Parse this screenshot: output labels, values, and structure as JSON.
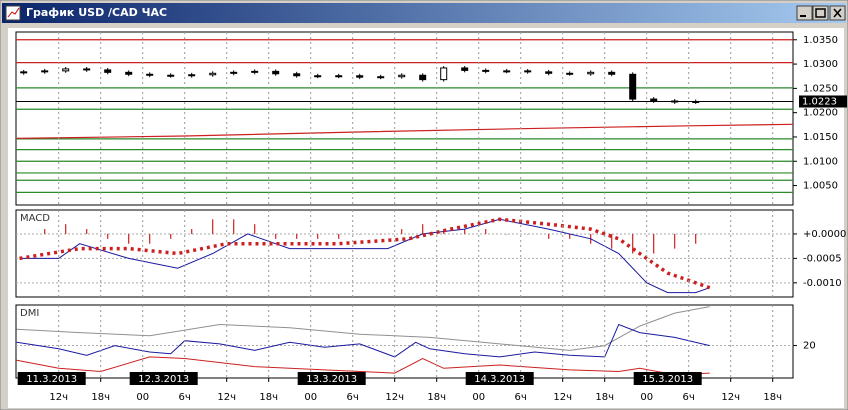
{
  "window_title": "График USD /CAD ЧАС",
  "chart_data": [
    {
      "type": "candlestick",
      "xlim": [
        5.9,
        116.9
      ],
      "ylim": [
        1.001,
        1.0366
      ],
      "yticks": [
        {
          "value": 1.035,
          "label": "1.0350"
        },
        {
          "value": 1.03,
          "label": "1.0300"
        },
        {
          "value": 1.025,
          "label": "1.0250"
        },
        {
          "value": 1.02,
          "label": "1.0200"
        },
        {
          "value": 1.015,
          "label": "1.0150"
        },
        {
          "value": 1.01,
          "label": "1.0100"
        },
        {
          "value": 1.005,
          "label": "1.0050"
        }
      ],
      "last_price": 1.0223,
      "x": [
        7,
        10,
        13,
        16,
        19,
        22,
        25,
        28,
        31,
        34,
        37,
        40,
        43,
        46,
        49,
        52,
        55,
        58,
        61,
        64,
        67,
        70,
        73,
        76,
        79,
        82,
        85,
        88,
        91,
        94,
        97,
        100,
        103
      ],
      "open": [
        1.0282,
        1.0284,
        1.0286,
        1.029,
        1.0288,
        1.0283,
        1.0279,
        1.0277,
        1.0276,
        1.0278,
        1.0281,
        1.0283,
        1.0285,
        1.028,
        1.0276,
        1.0275,
        1.0276,
        1.0273,
        1.0274,
        1.0277,
        1.0268,
        1.0292,
        1.0287,
        1.0285,
        1.0286,
        1.0284,
        1.0281,
        1.028,
        1.0283,
        1.0279,
        1.0228,
        1.0224,
        1.0222
      ],
      "high": [
        1.0288,
        1.029,
        1.0294,
        1.0294,
        1.0292,
        1.0287,
        1.0283,
        1.0281,
        1.0282,
        1.0285,
        1.0287,
        1.0289,
        1.0289,
        1.0284,
        1.028,
        1.028,
        1.028,
        1.0278,
        1.0281,
        1.0281,
        1.0296,
        1.0296,
        1.0291,
        1.029,
        1.029,
        1.0288,
        1.0285,
        1.0287,
        1.0287,
        1.0283,
        1.0232,
        1.0228,
        1.0227
      ],
      "low": [
        1.0278,
        1.028,
        1.0282,
        1.0284,
        1.0279,
        1.0275,
        1.0273,
        1.0272,
        1.0272,
        1.0274,
        1.0277,
        1.0279,
        1.0276,
        1.0272,
        1.0271,
        1.0271,
        1.0269,
        1.0269,
        1.027,
        1.0264,
        1.0264,
        1.0283,
        1.0281,
        1.0281,
        1.028,
        1.0277,
        1.0276,
        1.0276,
        1.0275,
        1.0224,
        1.022,
        1.0218,
        1.0218
      ],
      "close": [
        1.0284,
        1.0286,
        1.029,
        1.0288,
        1.0283,
        1.0279,
        1.0277,
        1.0276,
        1.0278,
        1.0281,
        1.0283,
        1.0285,
        1.028,
        1.0276,
        1.0275,
        1.0276,
        1.0273,
        1.0274,
        1.0277,
        1.0268,
        1.0292,
        1.0287,
        1.0285,
        1.0286,
        1.0284,
        1.0281,
        1.028,
        1.0283,
        1.0279,
        1.0228,
        1.0224,
        1.0222,
        1.0223
      ],
      "levels": [
        {
          "value": 1.035,
          "color": "#cc2020"
        },
        {
          "value": 1.0303,
          "color": "#cc2020"
        },
        {
          "value": 1.0251,
          "color": "#2a8a2a"
        },
        {
          "value": 1.0207,
          "color": "#2a8a2a"
        },
        {
          "value": 1.0146,
          "color": "#2a8a2a"
        },
        {
          "value": 1.0124,
          "color": "#2a8a2a"
        },
        {
          "value": 1.01,
          "color": "#2a8a2a"
        },
        {
          "value": 1.0076,
          "color": "#2a8a2a"
        },
        {
          "value": 1.0061,
          "color": "#2a8a2a"
        },
        {
          "value": 1.0036,
          "color": "#2a8a2a"
        }
      ],
      "series": [
        {
          "color": "#cc2020",
          "x": [
            6,
            30,
            54,
            78,
            102,
            117
          ],
          "values": [
            1.0147,
            1.0152,
            1.016,
            1.0167,
            1.0173,
            1.0176
          ]
        }
      ]
    },
    {
      "type": "combo",
      "title": "MACD",
      "xlim": [
        5.9,
        116.9
      ],
      "ylim": [
        -0.00129,
        0.00049
      ],
      "yticks": [
        {
          "value": 0,
          "label": "+0.0000"
        },
        {
          "value": -0.0005,
          "label": "-0.0005"
        },
        {
          "value": -0.001,
          "label": "-0.0010"
        }
      ],
      "grid": true,
      "series": [
        {
          "style": "bar",
          "color": "#cc2020",
          "x": [
            10,
            13,
            16,
            19,
            22,
            25,
            28,
            31,
            34,
            37,
            40,
            43,
            46,
            49,
            52,
            55,
            58,
            61,
            64,
            67,
            70,
            73,
            76,
            79,
            82,
            85,
            88,
            91,
            94,
            97,
            100,
            103
          ],
          "values": [
            0.0001,
            0.0002,
            0.0001,
            -0.0001,
            -0.0002,
            -0.0002,
            -0.0001,
            0.0001,
            0.0003,
            0.0003,
            0.0002,
            -0.0001,
            -0.0001,
            -0.0001,
            -0.0001,
            0,
            0,
            0.0001,
            0.0002,
            0.0001,
            0.0001,
            0.0001,
            0,
            0,
            -0.0001,
            -0.0001,
            -0.0002,
            -0.0003,
            -0.0004,
            -0.0004,
            -0.0003,
            -0.0002
          ]
        },
        {
          "style": "line",
          "color": "#1a1aa0",
          "x": [
            6.4,
            12,
            15,
            22,
            29,
            34,
            39,
            45,
            52,
            59,
            64,
            70,
            75,
            82,
            88,
            92,
            96,
            99,
            103,
            105
          ],
          "values": [
            -0.0005,
            -0.0005,
            -0.0002,
            -0.0005,
            -0.0007,
            -0.0004,
            0,
            -0.0003,
            -0.0003,
            -0.0003,
            0,
            0.0001,
            0.0003,
            0.0001,
            -0.0001,
            -0.0004,
            -0.001,
            -0.0012,
            -0.0012,
            -0.0011
          ]
        },
        {
          "style": "dotted",
          "color": "#cc2020",
          "x": [
            6.4,
            15,
            22,
            29,
            36,
            42,
            52,
            62,
            68,
            75,
            82,
            88,
            92,
            96,
            99,
            103,
            105
          ],
          "values": [
            -0.0005,
            -0.0003,
            -0.0003,
            -0.0004,
            -0.0002,
            -0.0002,
            -0.0002,
            -0.0001,
            0.0001,
            0.0003,
            0.0002,
            0.0001,
            -0.0001,
            -0.0005,
            -0.0008,
            -0.001,
            -0.0011
          ]
        }
      ]
    },
    {
      "type": "line",
      "title": "DMI",
      "xlim": [
        5.9,
        116.9
      ],
      "ylim": [
        0,
        45
      ],
      "yticks": [
        20
      ],
      "grid": true,
      "xticks": [
        {
          "value": 12,
          "label": "12ч"
        },
        {
          "value": 18,
          "label": "18ч"
        },
        {
          "value": 24,
          "label": "00"
        },
        {
          "value": 30,
          "label": "6ч"
        },
        {
          "value": 36,
          "label": "12ч"
        },
        {
          "value": 42,
          "label": "18ч"
        },
        {
          "value": 48,
          "label": "00"
        },
        {
          "value": 54,
          "label": "6ч"
        },
        {
          "value": 60,
          "label": "12ч"
        },
        {
          "value": 66,
          "label": "18ч"
        },
        {
          "value": 72,
          "label": "00"
        },
        {
          "value": 78,
          "label": "6ч"
        },
        {
          "value": 84,
          "label": "12ч"
        },
        {
          "value": 90,
          "label": "18ч"
        },
        {
          "value": 96,
          "label": "00"
        },
        {
          "value": 102,
          "label": "6ч"
        },
        {
          "value": 108,
          "label": "12ч"
        },
        {
          "value": 114,
          "label": "18ч"
        }
      ],
      "date_labels": [
        {
          "value": 11,
          "label": "11.3.2013"
        },
        {
          "value": 27,
          "label": "12.3.2013"
        },
        {
          "value": 51,
          "label": "13.3.2013"
        },
        {
          "value": 75,
          "label": "14.3.2013"
        },
        {
          "value": 99,
          "label": "15.3.2013"
        }
      ],
      "series": [
        {
          "color": "#909090",
          "x": [
            6,
            15,
            25,
            35,
            45,
            55,
            65,
            75,
            85,
            90,
            95,
            100,
            105
          ],
          "values": [
            30,
            28,
            26,
            33,
            31,
            27,
            25,
            21,
            17,
            20,
            32,
            40,
            44
          ]
        },
        {
          "color": "#1a1aa0",
          "x": [
            6,
            12,
            16,
            20,
            25,
            28,
            30,
            35,
            40,
            45,
            50,
            55,
            60,
            63,
            65,
            70,
            75,
            80,
            85,
            90,
            92,
            95,
            100,
            105
          ],
          "values": [
            22,
            18,
            14,
            20,
            16,
            15,
            23,
            21,
            17,
            22,
            19,
            21,
            13,
            22,
            18,
            15,
            13,
            16,
            14,
            13,
            33,
            28,
            25,
            20
          ]
        },
        {
          "color": "#cc2020",
          "x": [
            6,
            12,
            18,
            25,
            30,
            40,
            50,
            60,
            64,
            67,
            75,
            85,
            92,
            95,
            100,
            105
          ],
          "values": [
            11,
            6,
            4,
            13,
            12,
            7,
            5,
            3,
            12,
            6,
            8,
            5,
            4,
            6,
            2,
            3
          ]
        }
      ]
    }
  ]
}
